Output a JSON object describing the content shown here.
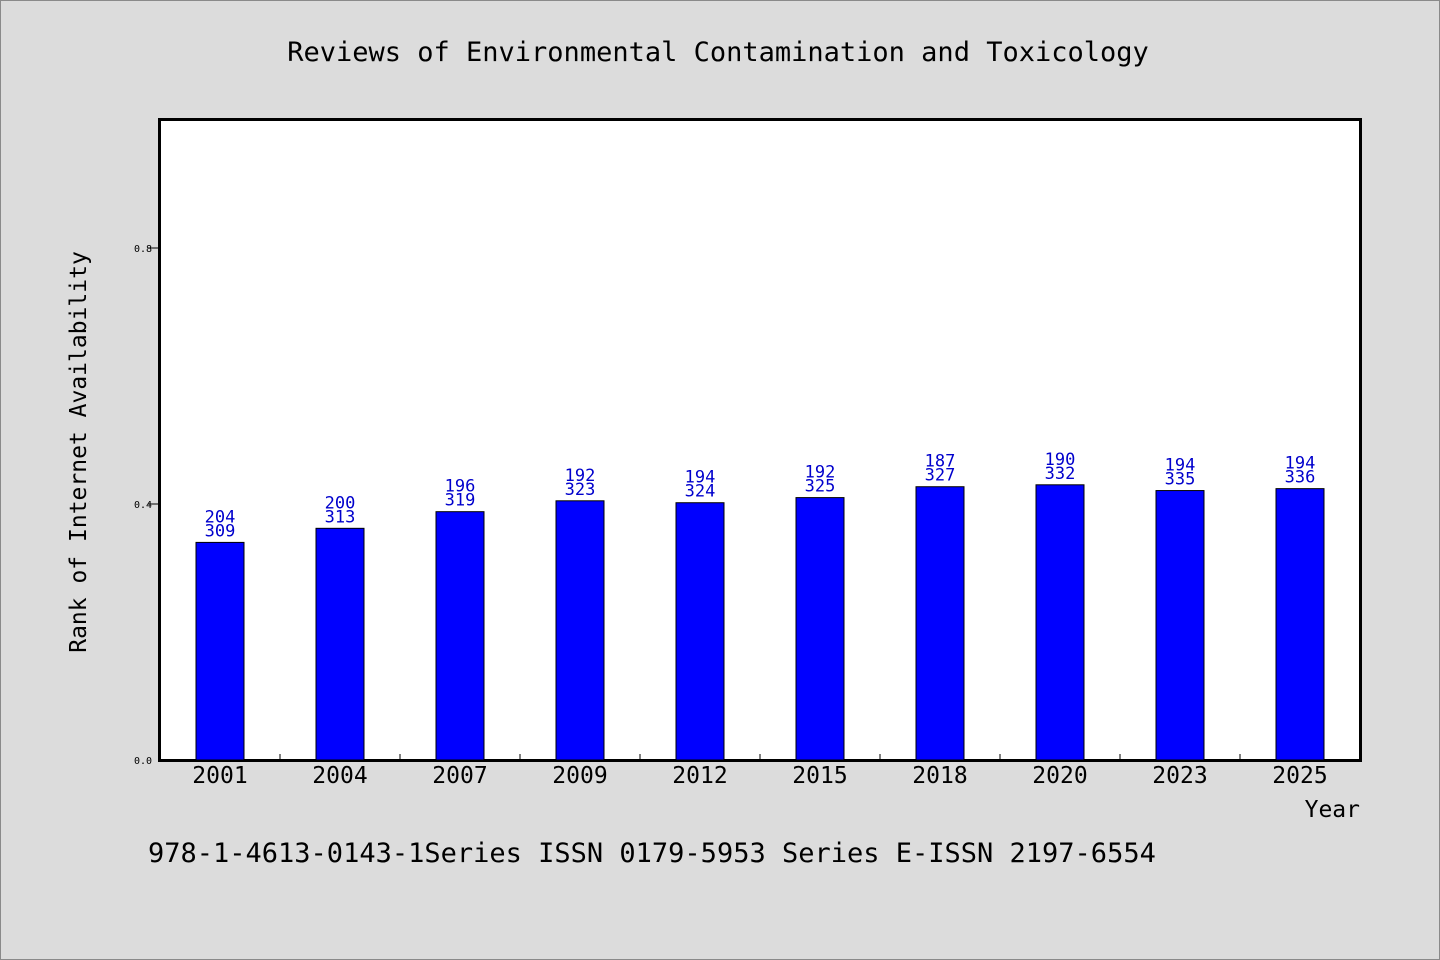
{
  "chart_data": {
    "type": "bar",
    "title": "Reviews of Environmental Contamination and Toxicology",
    "xlabel": "Year",
    "ylabel": "Rank of Internet Availability",
    "categories": [
      "2001",
      "2004",
      "2007",
      "2009",
      "2012",
      "2015",
      "2018",
      "2020",
      "2023",
      "2025"
    ],
    "values": [
      0.34,
      0.362,
      0.388,
      0.405,
      0.402,
      0.41,
      0.427,
      0.43,
      0.421,
      0.424
    ],
    "label_top": [
      "204",
      "200",
      "196",
      "192",
      "194",
      "192",
      "187",
      "190",
      "194",
      "194"
    ],
    "label_bottom": [
      "309",
      "313",
      "319",
      "323",
      "324",
      "325",
      "327",
      "332",
      "335",
      "336"
    ],
    "yticks": [
      "0.0",
      "0.4",
      "0.8"
    ],
    "ylim": [
      0,
      1.0
    ],
    "grid": false,
    "bar_color": "#0000ff",
    "label_color": "#0000cc",
    "footer": "978-1-4613-0143-1Series ISSN 0179-5953 Series E-ISSN 2197-6554"
  }
}
